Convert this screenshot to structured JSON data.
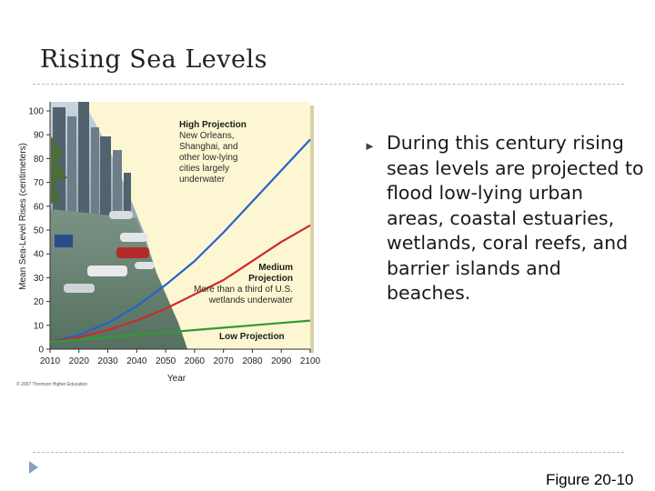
{
  "slide": {
    "title": "Rising Sea Levels",
    "body": "During this century rising seas levels are projected to flood low-lying urban areas, coastal estuaries, wetlands, coral reefs, and barrier islands and beaches.",
    "bullet_glyph": "►",
    "figure_caption": "Figure 20-10",
    "copyright": "© 2007 Thomson Higher Education"
  },
  "chart_data": {
    "type": "line",
    "title": "",
    "xlabel": "Year",
    "ylabel": "Mean Sea-Level Rises (centimeters)",
    "x": [
      2010,
      2020,
      2030,
      2040,
      2050,
      2060,
      2070,
      2080,
      2090,
      2100
    ],
    "xlim": [
      2010,
      2100
    ],
    "ylim": [
      0,
      100
    ],
    "yticks": [
      0,
      10,
      20,
      30,
      40,
      50,
      60,
      70,
      80,
      90,
      100
    ],
    "grid": false,
    "series": [
      {
        "name": "High Projection",
        "color": "#2563c9",
        "values": [
          3,
          6,
          11,
          18,
          27,
          37,
          49,
          62,
          75,
          88
        ],
        "annotation": "New Orleans, Shanghai, and other low-lying cities largely underwater"
      },
      {
        "name": "Medium Projection",
        "color": "#cc2a2a",
        "values": [
          3,
          5,
          8,
          12,
          17,
          23,
          29,
          37,
          45,
          52
        ],
        "annotation": "More than a third of U.S. wetlands underwater"
      },
      {
        "name": "Low Projection",
        "color": "#2f9a35",
        "values": [
          3,
          4,
          5,
          6,
          7,
          8,
          9,
          10,
          11,
          12
        ],
        "annotation": ""
      }
    ],
    "colors": {
      "plot_background": "#fcf7d2",
      "photo_water": "#6f8a78"
    }
  }
}
